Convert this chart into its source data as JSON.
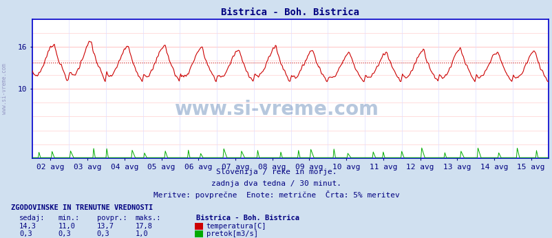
{
  "title": "Bistrica - Boh. Bistrica",
  "title_color": "#000080",
  "bg_color": "#d0e0f0",
  "plot_bg_color": "#ffffff",
  "x_labels": [
    "02 avg",
    "03 avg",
    "04 avg",
    "05 avg",
    "06 avg",
    "07 avg",
    "08 avg",
    "09 avg",
    "10 avg",
    "11 avg",
    "12 avg",
    "13 avg",
    "14 avg",
    "15 avg"
  ],
  "y_ticks": [
    10,
    16
  ],
  "y_min": 0,
  "y_max": 20,
  "temp_color": "#cc0000",
  "flow_color": "#00aa00",
  "avg_line_color": "#cc0000",
  "avg_line_value": 13.7,
  "grid_color": "#ffaaaa",
  "grid_vcolor": "#ddddff",
  "axis_color": "#0000cc",
  "text_color": "#000080",
  "subtitle1": "Slovenija / reke in morje.",
  "subtitle2": "zadnja dva tedna / 30 minut.",
  "subtitle3": "Meritve: povprečne  Enote: metrične  Črta: 5% meritev",
  "footer_bold": "ZGODOVINSKE IN TRENUTNE VREDNOSTI",
  "col_sedaj": "sedaj:",
  "col_min": "min.:",
  "col_povpr": "povpr.:",
  "col_maks": "maks.:",
  "station_name": "Bistrica - Boh. Bistrica",
  "temp_sedaj": "14,3",
  "temp_min": "11,0",
  "temp_povpr": "13,7",
  "temp_maks": "17,8",
  "temp_label": "temperatura[C]",
  "flow_sedaj": "0,3",
  "flow_min": "0,3",
  "flow_povpr": "0,3",
  "flow_maks": "1,0",
  "flow_label": "pretok[m3/s]",
  "n_points": 672,
  "temp_min_val": 11.0,
  "temp_max_val": 17.8,
  "flow_max_val": 1.0,
  "watermark_text": "www.si-vreme.com",
  "watermark_color": "#3060a0",
  "left_label": "www.si-vreme.com"
}
